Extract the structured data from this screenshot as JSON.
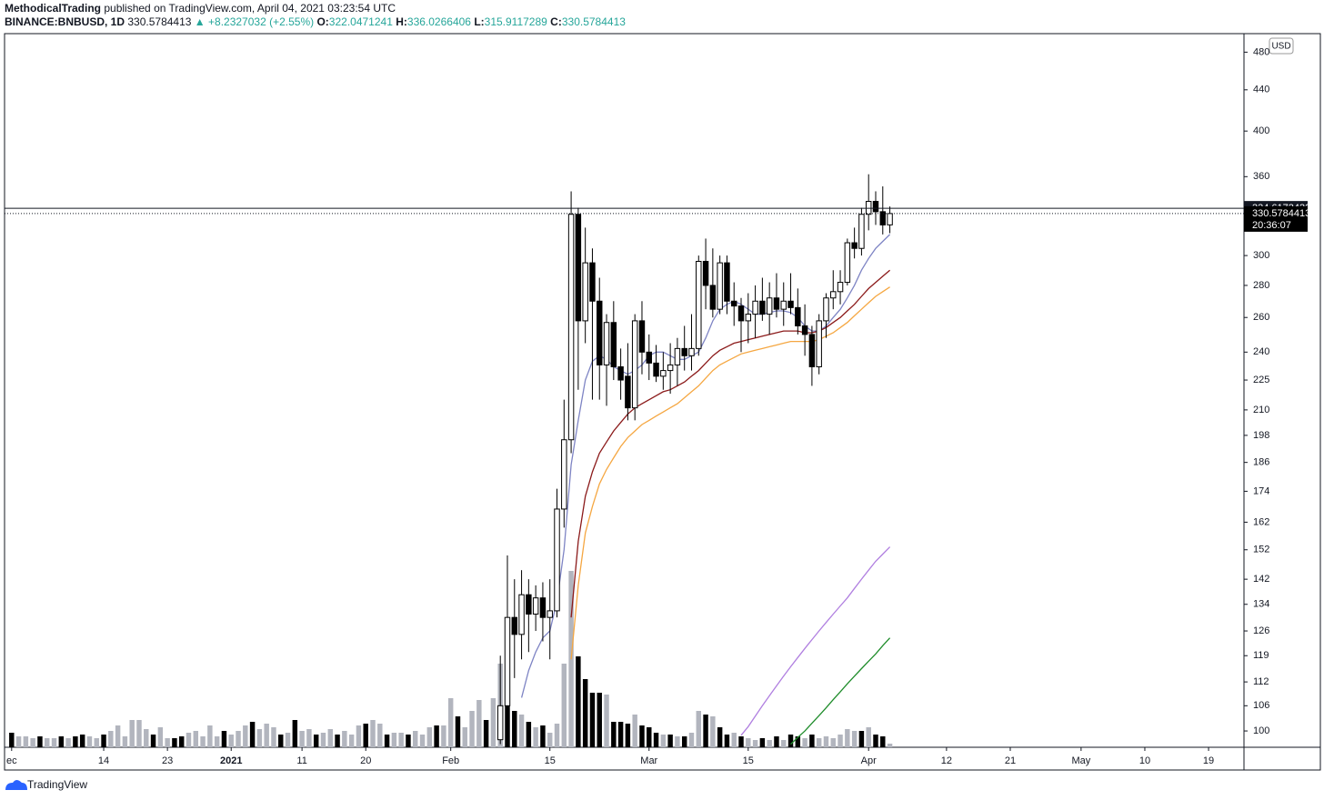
{
  "header": {
    "author": "MethodicalTrading",
    "published": "published on TradingView.com, April 04, 2021 03:23:54 UTC",
    "symbol": "BINANCE:BNBUSD, 1D",
    "change": "+8.2327032 (+2.55%)",
    "open_label": "O:",
    "high_label": "H:",
    "low_label": "L:",
    "close_label": "C:"
  },
  "currency_button": "USD",
  "footer": "TradingView",
  "chart_data": {
    "type": "candlestick",
    "log_scale": true,
    "grid": false,
    "ylim": [
      96.3,
      501
    ],
    "yticks": [
      100,
      106,
      112,
      119,
      126,
      134,
      142,
      152,
      162,
      174,
      186,
      198,
      210,
      225,
      240,
      260,
      280,
      300,
      360,
      400,
      440,
      480
    ],
    "xlim": [
      "2020-11-30",
      "2021-05-24"
    ],
    "xticks": [
      {
        "value": "2020-12-01",
        "label": "ec"
      },
      {
        "value": "2020-12-14",
        "label": "14"
      },
      {
        "value": "2020-12-23",
        "label": "23"
      },
      {
        "value": "2021-01-01",
        "label": "2021"
      },
      {
        "value": "2021-01-11",
        "label": "11"
      },
      {
        "value": "2021-01-20",
        "label": "20"
      },
      {
        "value": "2021-02-01",
        "label": "Feb"
      },
      {
        "value": "2021-02-15",
        "label": "15"
      },
      {
        "value": "2021-03-01",
        "label": "Mar"
      },
      {
        "value": "2021-03-15",
        "label": "15"
      },
      {
        "value": "2021-04-01",
        "label": "Apr"
      },
      {
        "value": "2021-04-12",
        "label": "12"
      },
      {
        "value": "2021-04-21",
        "label": "21"
      },
      {
        "value": "2021-05-01",
        "label": "May"
      },
      {
        "value": "2021-05-10",
        "label": "10"
      },
      {
        "value": "2021-05-19",
        "label": "19"
      }
    ],
    "horizontal_line": 334.6173432,
    "countdown": "20:36:07",
    "up_color": "#ffffff",
    "down_color": "#000000",
    "candles": {
      "x": [
        "2021-02-08",
        "2021-02-09",
        "2021-02-10",
        "2021-02-11",
        "2021-02-12",
        "2021-02-13",
        "2021-02-14",
        "2021-02-15",
        "2021-02-16",
        "2021-02-17",
        "2021-02-18",
        "2021-02-19",
        "2021-02-20",
        "2021-02-21",
        "2021-02-22",
        "2021-02-23",
        "2021-02-24",
        "2021-02-25",
        "2021-02-26",
        "2021-02-27",
        "2021-02-28",
        "2021-03-01",
        "2021-03-02",
        "2021-03-03",
        "2021-03-04",
        "2021-03-05",
        "2021-03-06",
        "2021-03-07",
        "2021-03-08",
        "2021-03-09",
        "2021-03-10",
        "2021-03-11",
        "2021-03-12",
        "2021-03-13",
        "2021-03-14",
        "2021-03-15",
        "2021-03-16",
        "2021-03-17",
        "2021-03-18",
        "2021-03-19",
        "2021-03-20",
        "2021-03-21",
        "2021-03-22",
        "2021-03-23",
        "2021-03-24",
        "2021-03-25",
        "2021-03-26",
        "2021-03-27",
        "2021-03-28",
        "2021-03-29",
        "2021-03-30",
        "2021-03-31",
        "2021-04-01",
        "2021-04-02",
        "2021-04-03",
        "2021-04-04"
      ],
      "open": [
        98,
        106,
        130,
        125,
        137,
        131,
        136,
        130,
        132,
        167,
        196,
        330,
        258,
        295,
        270,
        233,
        257,
        232,
        227,
        211,
        258,
        240,
        234,
        227,
        230,
        233,
        242,
        238,
        242,
        296,
        280,
        265,
        295,
        270,
        267,
        258,
        262,
        270,
        262,
        272,
        265,
        270,
        266,
        255,
        250,
        232,
        258,
        272,
        276,
        282,
        309,
        305,
        330,
        340,
        332,
        322.0471241
      ],
      "high": [
        119,
        150,
        142,
        145,
        142,
        140,
        141,
        142,
        175,
        215,
        348,
        335,
        320,
        305,
        285,
        262,
        270,
        242,
        245,
        262,
        270,
        250,
        244,
        240,
        245,
        248,
        255,
        262,
        300,
        312,
        305,
        300,
        300,
        282,
        272,
        275,
        280,
        285,
        282,
        288,
        282,
        288,
        278,
        268,
        255,
        262,
        275,
        290,
        290,
        312,
        320,
        335,
        362,
        348,
        352,
        336.0266406
      ],
      "low": [
        97,
        105,
        113,
        118,
        120,
        126,
        123,
        118,
        130,
        160,
        190,
        220,
        245,
        215,
        215,
        212,
        225,
        215,
        205,
        205,
        228,
        225,
        224,
        220,
        218,
        222,
        230,
        230,
        238,
        265,
        260,
        262,
        262,
        255,
        240,
        245,
        248,
        258,
        250,
        260,
        255,
        262,
        250,
        238,
        222,
        228,
        248,
        265,
        268,
        280,
        298,
        300,
        318,
        322,
        315,
        315.9117289
      ],
      "close": [
        106,
        130,
        125,
        137,
        131,
        136,
        130,
        132,
        167,
        196,
        330,
        258,
        295,
        270,
        233,
        257,
        232,
        225,
        211,
        258,
        240,
        234,
        227,
        230,
        233,
        242,
        238,
        242,
        296,
        280,
        265,
        295,
        270,
        267,
        258,
        262,
        270,
        262,
        272,
        265,
        270,
        266,
        255,
        250,
        232,
        258,
        272,
        276,
        282,
        309,
        305,
        330,
        340,
        332,
        322,
        330.5784413
      ]
    },
    "lines": [
      {
        "color": "#7e84c4",
        "values": [
          null,
          null,
          null,
          108,
          115,
          120,
          124,
          126,
          135,
          152,
          185,
          205,
          225,
          235,
          238,
          236,
          232,
          230,
          228,
          230,
          233,
          238,
          240,
          240,
          238,
          236,
          236,
          238,
          240,
          248,
          258,
          265,
          268,
          270,
          268,
          265,
          262,
          262,
          263,
          264,
          264,
          263,
          260,
          255,
          252,
          252,
          255,
          260,
          265,
          272,
          280,
          290,
          298,
          305,
          310,
          315
        ]
      },
      {
        "color": "#8b1a1a",
        "values": [
          null,
          null,
          null,
          null,
          null,
          null,
          null,
          null,
          null,
          null,
          130,
          155,
          172,
          182,
          190,
          195,
          200,
          204,
          208,
          211,
          213,
          215,
          217,
          219,
          220,
          222,
          224,
          227,
          230,
          234,
          238,
          241,
          243,
          245,
          246,
          247,
          248,
          249,
          250,
          251,
          252,
          252,
          252,
          251,
          251,
          252,
          254,
          257,
          260,
          264,
          268,
          273,
          278,
          282,
          286,
          290
        ]
      },
      {
        "color": "#f5a742",
        "values": [
          null,
          null,
          null,
          null,
          null,
          null,
          null,
          null,
          null,
          null,
          118,
          140,
          158,
          168,
          177,
          183,
          188,
          193,
          197,
          200,
          203,
          205,
          207,
          209,
          211,
          213,
          216,
          219,
          222,
          226,
          230,
          233,
          235,
          237,
          239,
          240,
          241,
          242,
          243,
          244,
          245,
          246,
          246,
          246,
          246,
          247,
          249,
          251,
          254,
          257,
          261,
          265,
          269,
          273,
          276,
          279
        ]
      },
      {
        "color": "#b07fe0",
        "values": [
          null,
          null,
          null,
          null,
          null,
          null,
          null,
          null,
          null,
          null,
          null,
          null,
          null,
          null,
          null,
          null,
          null,
          null,
          null,
          null,
          null,
          null,
          null,
          null,
          null,
          null,
          null,
          null,
          null,
          null,
          null,
          null,
          null,
          null,
          99,
          101,
          103.5,
          106,
          108.5,
          111,
          113.5,
          116,
          118.5,
          121,
          123.5,
          126,
          128.5,
          131,
          133.5,
          136,
          139,
          142,
          145,
          148,
          150.5,
          153
        ]
      },
      {
        "color": "#1e8c2a",
        "values": [
          null,
          null,
          null,
          null,
          null,
          null,
          null,
          null,
          null,
          null,
          null,
          null,
          null,
          null,
          null,
          null,
          null,
          null,
          null,
          null,
          null,
          null,
          null,
          null,
          null,
          null,
          null,
          null,
          null,
          null,
          null,
          null,
          null,
          null,
          null,
          null,
          null,
          null,
          null,
          null,
          null,
          97,
          98.5,
          100,
          101.8,
          103.6,
          105.5,
          107.5,
          109.5,
          111.5,
          113.5,
          115.5,
          117.5,
          119.5,
          121.8,
          124
        ]
      }
    ],
    "volume": {
      "ylim": [
        0,
        210
      ],
      "x": [
        "2020-12-01",
        "2020-12-02",
        "2020-12-03",
        "2020-12-04",
        "2020-12-05",
        "2020-12-06",
        "2020-12-07",
        "2020-12-08",
        "2020-12-09",
        "2020-12-10",
        "2020-12-11",
        "2020-12-12",
        "2020-12-13",
        "2020-12-14",
        "2020-12-15",
        "2020-12-16",
        "2020-12-17",
        "2020-12-18",
        "2020-12-19",
        "2020-12-20",
        "2020-12-21",
        "2020-12-22",
        "2020-12-23",
        "2020-12-24",
        "2020-12-25",
        "2020-12-26",
        "2020-12-27",
        "2020-12-28",
        "2020-12-29",
        "2020-12-30",
        "2020-12-31",
        "2021-01-01",
        "2021-01-02",
        "2021-01-03",
        "2021-01-04",
        "2021-01-05",
        "2021-01-06",
        "2021-01-07",
        "2021-01-08",
        "2021-01-09",
        "2021-01-10",
        "2021-01-11",
        "2021-01-12",
        "2021-01-13",
        "2021-01-14",
        "2021-01-15",
        "2021-01-16",
        "2021-01-17",
        "2021-01-18",
        "2021-01-19",
        "2021-01-20",
        "2021-01-21",
        "2021-01-22",
        "2021-01-23",
        "2021-01-24",
        "2021-01-25",
        "2021-01-26",
        "2021-01-27",
        "2021-01-28",
        "2021-01-29",
        "2021-01-30",
        "2021-01-31",
        "2021-02-01",
        "2021-02-02",
        "2021-02-03",
        "2021-02-04",
        "2021-02-05",
        "2021-02-06",
        "2021-02-07",
        "2021-02-08",
        "2021-02-09",
        "2021-02-10",
        "2021-02-11",
        "2021-02-12",
        "2021-02-13",
        "2021-02-14",
        "2021-02-15",
        "2021-02-16",
        "2021-02-17",
        "2021-02-18",
        "2021-02-19",
        "2021-02-20",
        "2021-02-21",
        "2021-02-22",
        "2021-02-23",
        "2021-02-24",
        "2021-02-25",
        "2021-02-26",
        "2021-02-27",
        "2021-02-28",
        "2021-03-01",
        "2021-03-02",
        "2021-03-03",
        "2021-03-04",
        "2021-03-05",
        "2021-03-06",
        "2021-03-07",
        "2021-03-08",
        "2021-03-09",
        "2021-03-10",
        "2021-03-11",
        "2021-03-12",
        "2021-03-13",
        "2021-03-14",
        "2021-03-15",
        "2021-03-16",
        "2021-03-17",
        "2021-03-18",
        "2021-03-19",
        "2021-03-20",
        "2021-03-21",
        "2021-03-22",
        "2021-03-23",
        "2021-03-24",
        "2021-03-25",
        "2021-03-26",
        "2021-03-27",
        "2021-03-28",
        "2021-03-29",
        "2021-03-30",
        "2021-03-31",
        "2021-04-01",
        "2021-04-02",
        "2021-04-03",
        "2021-04-04"
      ],
      "values": [
        16,
        12,
        12,
        10,
        12,
        10,
        10,
        12,
        10,
        12,
        14,
        12,
        10,
        14,
        18,
        24,
        12,
        30,
        30,
        20,
        14,
        22,
        10,
        10,
        12,
        16,
        18,
        12,
        24,
        12,
        18,
        14,
        18,
        24,
        28,
        20,
        26,
        22,
        14,
        16,
        30,
        18,
        20,
        14,
        16,
        20,
        14,
        18,
        14,
        24,
        26,
        30,
        26,
        14,
        16,
        16,
        14,
        18,
        14,
        22,
        24,
        24,
        54,
        34,
        22,
        40,
        52,
        30,
        54,
        92,
        52,
        40,
        36,
        28,
        22,
        24,
        16,
        26,
        92,
        194,
        100,
        75,
        60,
        60,
        58,
        28,
        28,
        26,
        36,
        24,
        22,
        16,
        14,
        14,
        12,
        12,
        16,
        40,
        36,
        34,
        22,
        14,
        16,
        12,
        10,
        8,
        10,
        8,
        12,
        8,
        14,
        12,
        10,
        14,
        10,
        12,
        10,
        14,
        20,
        18,
        18,
        22,
        14,
        12,
        4
      ],
      "colors": [
        "#000",
        "#b2b5be",
        "#b2b5be",
        "#b2b5be",
        "#000",
        "#b2b5be",
        "#b2b5be",
        "#000",
        "#b2b5be",
        "#000",
        "#000",
        "#b2b5be",
        "#b2b5be",
        "#000",
        "#b2b5be",
        "#b2b5be",
        "#b2b5be",
        "#b2b5be",
        "#b2b5be",
        "#b2b5be",
        "#000",
        "#b2b5be",
        "#b2b5be",
        "#000",
        "#000",
        "#b2b5be",
        "#b2b5be",
        "#b2b5be",
        "#b2b5be",
        "#b2b5be",
        "#000",
        "#b2b5be",
        "#b2b5be",
        "#b2b5be",
        "#000",
        "#b2b5be",
        "#b2b5be",
        "#b2b5be",
        "#000",
        "#b2b5be",
        "#000",
        "#b2b5be",
        "#b2b5be",
        "#000",
        "#b2b5be",
        "#b2b5be",
        "#000",
        "#b2b5be",
        "#b2b5be",
        "#b2b5be",
        "#000",
        "#b2b5be",
        "#b2b5be",
        "#000",
        "#b2b5be",
        "#b2b5be",
        "#000",
        "#b2b5be",
        "#b2b5be",
        "#b2b5be",
        "#000",
        "#b2b5be",
        "#b2b5be",
        "#000",
        "#b2b5be",
        "#b2b5be",
        "#b2b5be",
        "#000",
        "#b2b5be",
        "#b2b5be",
        "#000",
        "#000",
        "#b2b5be",
        "#000",
        "#b2b5be",
        "#000",
        "#b2b5be",
        "#b2b5be",
        "#b2b5be",
        "#b2b5be",
        "#000",
        "#000",
        "#000",
        "#000",
        "#b2b5be",
        "#000",
        "#000",
        "#000",
        "#b2b5be",
        "#000",
        "#000",
        "#000",
        "#b2b5be",
        "#000",
        "#b2b5be",
        "#000",
        "#b2b5be",
        "#b2b5be",
        "#000",
        "#b2b5be",
        "#000",
        "#000",
        "#b2b5be",
        "#000",
        "#b2b5be",
        "#b2b5be",
        "#000",
        "#b2b5be",
        "#000",
        "#b2b5be",
        "#000",
        "#000",
        "#b2b5be",
        "#000",
        "#b2b5be",
        "#b2b5be",
        "#b2b5be",
        "#b2b5be",
        "#b2b5be",
        "#b2b5be",
        "#000",
        "#b2b5be",
        "#000",
        "#000",
        "#b2b5be"
      ]
    }
  }
}
